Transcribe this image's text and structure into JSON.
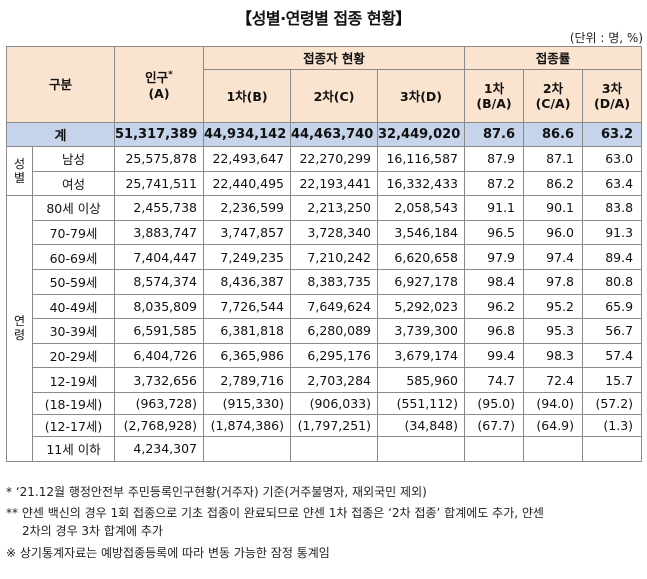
{
  "title": "【성별·연령별 접종 현황】",
  "unit": "(단위 : 명, %)",
  "headers": {
    "category": "구분",
    "population": "인구",
    "population_sup": "*",
    "population_sub": "(A)",
    "vaccinated_group": "접종자 현황",
    "dose1": "1차(B)",
    "dose2": "2차(C)",
    "dose3": "3차(D)",
    "rate_group": "접종률",
    "rate1_a": "1차",
    "rate1_b": "(B/A)",
    "rate2_a": "2차",
    "rate2_b": "(C/A)",
    "rate3_a": "3차",
    "rate3_b": "(D/A)"
  },
  "side_labels": {
    "gender": "성별",
    "age": "연령"
  },
  "total": {
    "label": "계",
    "pop": "51,317,389",
    "d1": "44,934,142",
    "d2": "44,463,740",
    "d3": "32,449,020",
    "r1": "87.6",
    "r2": "86.6",
    "r3": "63.2"
  },
  "gender_rows": [
    {
      "label": "남성",
      "pop": "25,575,878",
      "d1": "22,493,647",
      "d2": "22,270,299",
      "d3": "16,116,587",
      "r1": "87.9",
      "r2": "87.1",
      "r3": "63.0"
    },
    {
      "label": "여성",
      "pop": "25,741,511",
      "d1": "22,440,495",
      "d2": "22,193,441",
      "d3": "16,332,433",
      "r1": "87.2",
      "r2": "86.2",
      "r3": "63.4"
    }
  ],
  "age_rows": [
    {
      "label": "80세 이상",
      "pop": "2,455,738",
      "d1": "2,236,599",
      "d2": "2,213,250",
      "d3": "2,058,543",
      "r1": "91.1",
      "r2": "90.1",
      "r3": "83.8"
    },
    {
      "label": "70-79세",
      "pop": "3,883,747",
      "d1": "3,747,857",
      "d2": "3,728,340",
      "d3": "3,546,184",
      "r1": "96.5",
      "r2": "96.0",
      "r3": "91.3"
    },
    {
      "label": "60-69세",
      "pop": "7,404,447",
      "d1": "7,249,235",
      "d2": "7,210,242",
      "d3": "6,620,658",
      "r1": "97.9",
      "r2": "97.4",
      "r3": "89.4"
    },
    {
      "label": "50-59세",
      "pop": "8,574,374",
      "d1": "8,436,387",
      "d2": "8,383,735",
      "d3": "6,927,178",
      "r1": "98.4",
      "r2": "97.8",
      "r3": "80.8"
    },
    {
      "label": "40-49세",
      "pop": "8,035,809",
      "d1": "7,726,544",
      "d2": "7,649,624",
      "d3": "5,292,023",
      "r1": "96.2",
      "r2": "95.2",
      "r3": "65.9"
    },
    {
      "label": "30-39세",
      "pop": "6,591,585",
      "d1": "6,381,818",
      "d2": "6,280,089",
      "d3": "3,739,300",
      "r1": "96.8",
      "r2": "95.3",
      "r3": "56.7"
    },
    {
      "label": "20-29세",
      "pop": "6,404,726",
      "d1": "6,365,986",
      "d2": "6,295,176",
      "d3": "3,679,174",
      "r1": "99.4",
      "r2": "98.3",
      "r3": "57.4"
    },
    {
      "label": "12-19세",
      "pop": "3,732,656",
      "d1": "2,789,716",
      "d2": "2,703,284",
      "d3": "585,960",
      "r1": "74.7",
      "r2": "72.4",
      "r3": "15.7"
    }
  ],
  "sub_rows": [
    {
      "label": "(18-19세)",
      "pop": "(963,728)",
      "d1": "(915,330)",
      "d2": "(906,033)",
      "d3": "(551,112)",
      "r1": "(95.0)",
      "r2": "(94.0)",
      "r3": "(57.2)"
    },
    {
      "label": "(12-17세)",
      "pop": "(2,768,928)",
      "d1": "(1,874,386)",
      "d2": "(1,797,251)",
      "d3": "(34,848)",
      "r1": "(67.7)",
      "r2": "(64.9)",
      "r3": "(1.3)"
    }
  ],
  "under11": {
    "label": "11세 이하",
    "pop": "4,234,307"
  },
  "footnotes": [
    "* ‘21.12월 행정안전부 주민등록인구현황(거주자) 기준(거주불명자, 재외국민 제외)",
    "** 얀센 백신의 경우 1회 접종으로 기초 접종이 완료되므로 얀센 1차 접종은 ‘2차 접종’ 합계에도 추가, 얀센",
    "2차의 경우 3차 합계에 추가",
    "※ 상기통계자료는 예방접종등록에 따라 변동 가능한 잠정 통계임"
  ]
}
